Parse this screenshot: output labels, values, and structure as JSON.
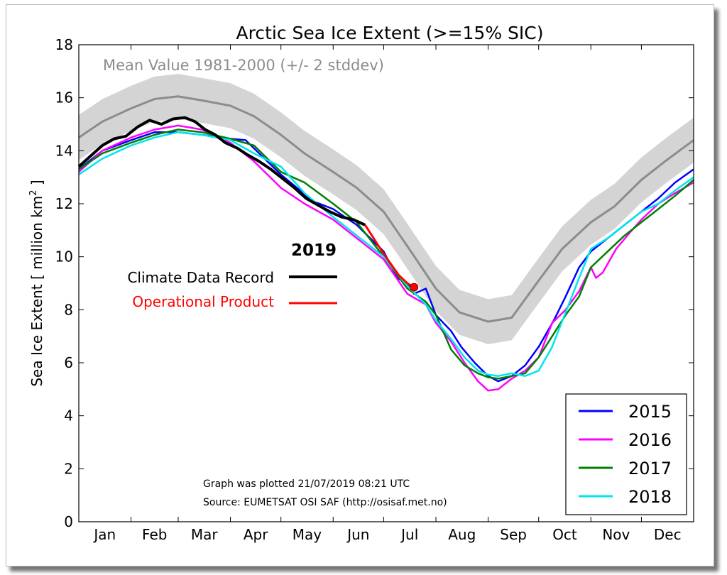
{
  "chart_data": {
    "type": "line",
    "title": "Arctic Sea Ice Extent (>=15% SIC)",
    "ylabel_prefix": "Sea Ice Extent [ million km",
    "ylabel_sup": "2",
    "ylabel_suffix": " ]",
    "ylim": [
      0,
      18
    ],
    "yticks": [
      "0",
      "2",
      "4",
      "6",
      "8",
      "10",
      "12",
      "14",
      "16",
      "18"
    ],
    "months": [
      "Jan",
      "Feb",
      "Mar",
      "Apr",
      "May",
      "Jun",
      "Jul",
      "Aug",
      "Sep",
      "Oct",
      "Nov",
      "Dec"
    ],
    "xlim_days": [
      1,
      366
    ],
    "mean_label": "Mean Value 1981-2000 (+/- 2 stddev)",
    "mean": {
      "color": "#8c8c8c",
      "band_color": "#d4d4d4",
      "stddev": 0.85,
      "x": [
        1,
        15,
        32,
        46,
        60,
        74,
        91,
        105,
        121,
        135,
        152,
        166,
        182,
        196,
        213,
        227,
        244,
        258,
        274,
        288,
        305,
        319,
        335,
        349,
        366
      ],
      "y": [
        14.5,
        15.1,
        15.6,
        15.95,
        16.05,
        15.9,
        15.7,
        15.3,
        14.6,
        13.9,
        13.2,
        12.6,
        11.7,
        10.4,
        8.8,
        7.9,
        7.55,
        7.7,
        9.1,
        10.3,
        11.3,
        11.9,
        12.9,
        13.6,
        14.4
      ]
    },
    "year_label": "2019",
    "series_2019": [
      {
        "name": "Climate Data Record",
        "color": "#000000",
        "x": [
          1,
          8,
          15,
          22,
          29,
          36,
          43,
          50,
          57,
          64,
          70,
          76,
          82,
          88,
          95,
          101,
          108,
          115,
          122,
          129,
          136,
          143,
          150,
          157,
          164,
          171
        ],
        "y": [
          13.4,
          13.8,
          14.2,
          14.45,
          14.55,
          14.9,
          15.15,
          15.0,
          15.2,
          15.25,
          15.1,
          14.8,
          14.6,
          14.3,
          14.1,
          13.85,
          13.6,
          13.3,
          12.95,
          12.6,
          12.2,
          11.95,
          11.7,
          11.5,
          11.4,
          11.2
        ]
      },
      {
        "name": "Operational Product",
        "color": "#ff0000",
        "x": [
          171,
          176,
          181,
          186,
          191,
          196,
          200
        ],
        "y": [
          11.2,
          10.7,
          10.2,
          9.75,
          9.3,
          9.0,
          8.85
        ]
      }
    ],
    "legend": {
      "placement": "lower-right",
      "series": [
        {
          "name": "2015",
          "color": "#0000ff"
        },
        {
          "name": "2016",
          "color": "#ff00ff"
        },
        {
          "name": "2017",
          "color": "#008000"
        },
        {
          "name": "2018",
          "color": "#00e5ee"
        }
      ]
    },
    "series": [
      {
        "name": "2015",
        "color": "#0000ff",
        "x": [
          1,
          15,
          32,
          46,
          60,
          74,
          91,
          100,
          121,
          140,
          152,
          166,
          182,
          190,
          196,
          200,
          207,
          213,
          222,
          228,
          236,
          244,
          250,
          258,
          266,
          274,
          283,
          290,
          298,
          305,
          315,
          325,
          335,
          345,
          355,
          366
        ],
        "y": [
          13.3,
          14.0,
          14.4,
          14.7,
          14.7,
          14.6,
          14.45,
          14.4,
          13.1,
          12.1,
          11.8,
          11.2,
          10.2,
          9.2,
          9.0,
          8.6,
          8.8,
          7.8,
          7.2,
          6.6,
          6.0,
          5.5,
          5.3,
          5.5,
          5.9,
          6.6,
          7.6,
          8.5,
          9.6,
          10.2,
          10.7,
          11.2,
          11.7,
          12.2,
          12.8,
          13.3
        ]
      },
      {
        "name": "2016",
        "color": "#ff00ff",
        "x": [
          1,
          15,
          32,
          46,
          60,
          74,
          91,
          105,
          121,
          135,
          152,
          166,
          182,
          196,
          207,
          213,
          222,
          230,
          238,
          244,
          250,
          258,
          266,
          274,
          282,
          290,
          298,
          305,
          308,
          312,
          320,
          328,
          335,
          345,
          355,
          366
        ],
        "y": [
          13.2,
          14.0,
          14.5,
          14.8,
          14.95,
          14.8,
          14.3,
          13.6,
          12.6,
          12.0,
          11.4,
          10.7,
          9.9,
          8.6,
          8.2,
          7.5,
          6.8,
          6.0,
          5.3,
          4.95,
          5.0,
          5.4,
          5.7,
          6.2,
          7.5,
          8.0,
          8.7,
          9.6,
          9.2,
          9.4,
          10.3,
          10.9,
          11.4,
          12.0,
          12.4,
          12.8
        ]
      },
      {
        "name": "2017",
        "color": "#008000",
        "x": [
          1,
          15,
          32,
          46,
          60,
          74,
          91,
          105,
          121,
          135,
          152,
          166,
          182,
          196,
          207,
          213,
          222,
          230,
          238,
          244,
          250,
          258,
          266,
          274,
          282,
          290,
          298,
          305,
          315,
          325,
          335,
          345,
          355,
          366
        ],
        "y": [
          13.3,
          13.9,
          14.3,
          14.6,
          14.8,
          14.7,
          14.45,
          14.2,
          13.2,
          12.8,
          12.0,
          11.3,
          10.0,
          8.8,
          8.3,
          7.8,
          6.5,
          5.9,
          5.6,
          5.45,
          5.4,
          5.5,
          5.6,
          6.2,
          7.0,
          7.8,
          8.5,
          9.6,
          10.2,
          10.8,
          11.3,
          11.8,
          12.3,
          12.9
        ]
      },
      {
        "name": "2018",
        "color": "#00e5ee",
        "x": [
          1,
          15,
          32,
          46,
          60,
          74,
          91,
          105,
          121,
          135,
          152,
          166,
          182,
          196,
          207,
          213,
          222,
          230,
          238,
          244,
          250,
          258,
          266,
          274,
          282,
          290,
          298,
          305,
          315,
          325,
          335,
          345,
          355,
          366
        ],
        "y": [
          13.1,
          13.7,
          14.2,
          14.5,
          14.7,
          14.6,
          14.4,
          13.9,
          13.4,
          12.4,
          11.5,
          10.8,
          10.0,
          8.9,
          8.2,
          7.6,
          6.9,
          6.2,
          5.7,
          5.55,
          5.5,
          5.6,
          5.5,
          5.7,
          6.6,
          7.9,
          9.2,
          10.3,
          10.7,
          11.2,
          11.7,
          12.0,
          12.5,
          13.0
        ]
      }
    ],
    "marker": {
      "x": 200,
      "y": 8.85,
      "color": "#ff0000"
    },
    "footnote_1": "Graph was plotted 21/07/2019 08:21 UTC",
    "footnote_2": "Source: EUMETSAT OSI SAF (http://osisaf.met.no)"
  }
}
